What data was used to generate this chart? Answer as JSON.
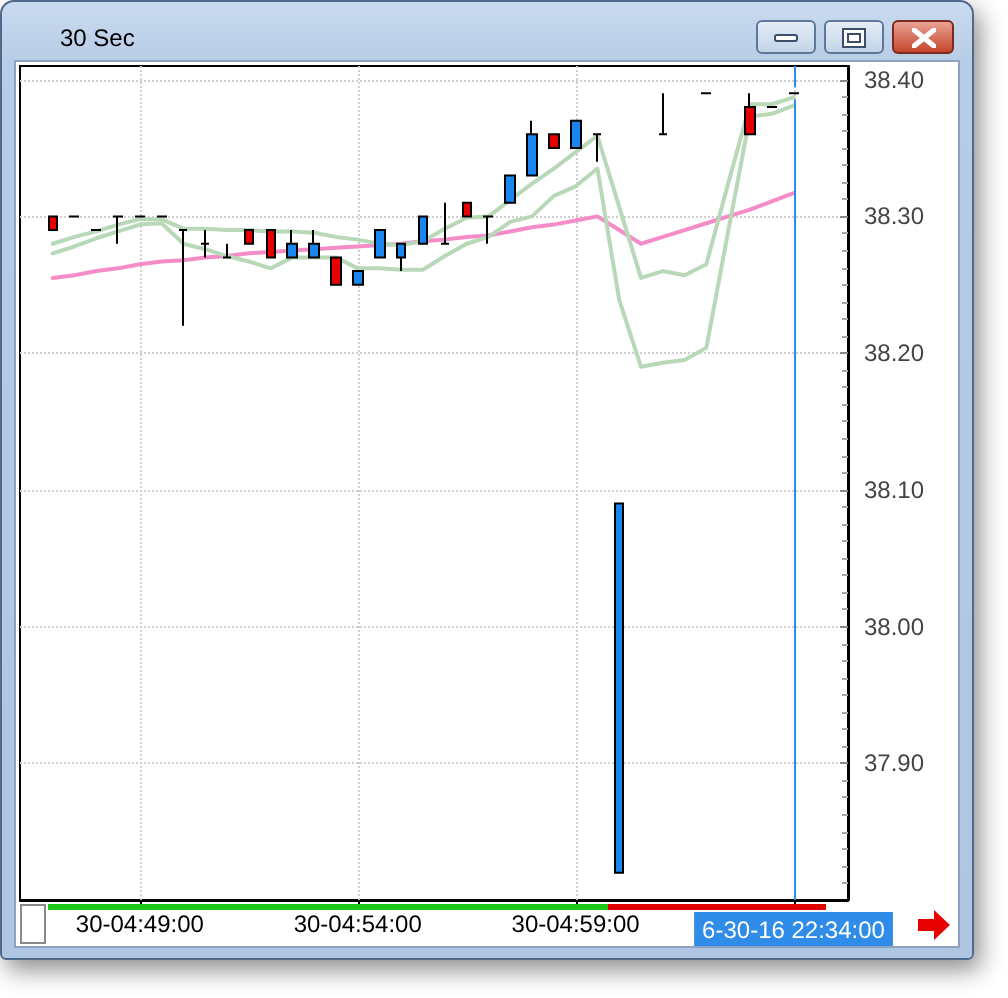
{
  "chart_data": {
    "type": "candlestick",
    "title": "30 Sec",
    "categories": [
      null,
      null,
      null,
      null,
      null,
      "30-04:49:00",
      null,
      null,
      null,
      null,
      null,
      null,
      null,
      null,
      null,
      "30-04:54:00",
      null,
      null,
      null,
      null,
      null,
      null,
      null,
      null,
      null,
      "30-04:59:00",
      null,
      null,
      null,
      null,
      null,
      null,
      null,
      null,
      null,
      "6-30-16 22:34:00",
      null,
      null
    ],
    "ohlc": [
      null,
      [
        38.3,
        38.3,
        38.29,
        38.29
      ],
      [
        38.3,
        38.3,
        38.3,
        38.3
      ],
      [
        38.29,
        38.29,
        38.29,
        38.29
      ],
      [
        38.3,
        38.3,
        38.28,
        38.3
      ],
      [
        38.3,
        38.3,
        38.3,
        38.3
      ],
      [
        38.3,
        38.3,
        38.3,
        38.3
      ],
      [
        38.29,
        38.29,
        38.22,
        38.29
      ],
      [
        38.28,
        38.29,
        38.27,
        38.28
      ],
      [
        38.27,
        38.28,
        38.27,
        38.27
      ],
      [
        38.29,
        38.29,
        38.28,
        38.28
      ],
      [
        38.29,
        38.29,
        38.27,
        38.27
      ],
      [
        38.27,
        38.29,
        38.27,
        38.28
      ],
      [
        38.27,
        38.29,
        38.27,
        38.28
      ],
      [
        38.27,
        38.27,
        38.25,
        38.25
      ],
      [
        38.25,
        38.26,
        38.25,
        38.26
      ],
      [
        38.27,
        38.29,
        38.27,
        38.29
      ],
      [
        38.27,
        38.28,
        38.26,
        38.28
      ],
      [
        38.28,
        38.3,
        38.28,
        38.3
      ],
      [
        38.28,
        38.31,
        38.28,
        38.28
      ],
      [
        38.31,
        38.31,
        38.3,
        38.3
      ],
      [
        38.3,
        38.3,
        38.28,
        38.3
      ],
      [
        38.31,
        38.33,
        38.31,
        38.33
      ],
      [
        38.33,
        38.37,
        38.33,
        38.36
      ],
      [
        38.36,
        38.36,
        38.35,
        38.35
      ],
      [
        38.35,
        38.37,
        38.35,
        38.37
      ],
      [
        38.36,
        38.36,
        38.34,
        38.36
      ],
      [
        37.82,
        38.09,
        37.82,
        38.09
      ],
      null,
      [
        38.36,
        38.39,
        38.36,
        38.36
      ],
      null,
      [
        38.39,
        38.39,
        38.39,
        38.39
      ],
      null,
      [
        38.38,
        38.39,
        38.36,
        38.36
      ],
      [
        38.38,
        38.38,
        38.38,
        38.38
      ],
      [
        38.39,
        38.39,
        38.39,
        38.39
      ],
      null,
      null
    ],
    "colors": [
      null,
      "#e80000",
      "#000000",
      "#000000",
      "#000000",
      "#000000",
      "#000000",
      "#000000",
      "#000000",
      "#000000",
      "#e80000",
      "#e80000",
      "#1a86f0",
      "#1a86f0",
      "#e80000",
      "#1a86f0",
      "#1a86f0",
      "#1a86f0",
      "#1a86f0",
      "#000000",
      "#e80000",
      "#000000",
      "#1a86f0",
      "#1a86f0",
      "#e80000",
      "#1a86f0",
      "#000000",
      "#1a86f0",
      null,
      "#000000",
      null,
      "#000000",
      null,
      "#e80000",
      "#000000",
      "#000000",
      null,
      null
    ],
    "series": [
      {
        "type": "line",
        "color": "#f48cc8",
        "values": [
          null,
          38.255,
          38.257,
          38.26,
          38.262,
          38.265,
          38.267,
          38.268,
          38.27,
          38.271,
          38.273,
          38.274,
          38.275,
          38.276,
          38.277,
          38.278,
          38.279,
          38.28,
          38.282,
          38.283,
          38.285,
          38.286,
          38.289,
          38.292,
          38.294,
          38.297,
          38.3,
          38.29,
          38.28,
          38.285,
          38.29,
          38.295,
          38.3,
          38.305,
          38.311,
          38.317,
          null,
          null
        ]
      },
      {
        "type": "line",
        "color": "#b8d8b8",
        "values": [
          null,
          38.28,
          38.285,
          38.289,
          38.294,
          38.298,
          38.298,
          38.291,
          38.291,
          38.29,
          38.29,
          38.289,
          38.289,
          38.288,
          38.285,
          38.283,
          38.28,
          38.279,
          38.282,
          38.291,
          38.299,
          38.3,
          38.312,
          38.324,
          38.335,
          38.347,
          38.359,
          38.307,
          38.255,
          38.26,
          38.257,
          38.265,
          38.324,
          38.382,
          38.382,
          38.387,
          null,
          null
        ]
      },
      {
        "type": "line",
        "color": "#b8d8b8",
        "values": [
          null,
          38.273,
          38.278,
          38.284,
          38.289,
          38.294,
          38.295,
          38.28,
          38.276,
          38.271,
          38.267,
          38.262,
          38.27,
          38.27,
          38.27,
          38.262,
          38.262,
          38.261,
          38.261,
          38.271,
          38.28,
          38.285,
          38.296,
          38.3,
          38.315,
          38.322,
          38.335,
          38.239,
          38.19,
          38.193,
          38.195,
          38.204,
          38.289,
          38.373,
          38.375,
          38.381,
          null,
          null
        ]
      }
    ],
    "ylim": [
      37.8,
      38.41
    ],
    "yticks": [
      {
        "value": 37.8125,
        "label": null
      },
      {
        "value": 37.825,
        "label": null
      },
      {
        "value": 37.8375,
        "label": null
      },
      {
        "value": 37.85,
        "label": null
      },
      {
        "value": 37.8625,
        "label": null
      },
      {
        "value": 37.875,
        "label": null
      },
      {
        "value": 37.8875,
        "label": null
      },
      {
        "value": 37.9,
        "label": "37.90"
      },
      {
        "value": 37.9125,
        "label": null
      },
      {
        "value": 37.925,
        "label": null
      },
      {
        "value": 37.9375,
        "label": null
      },
      {
        "value": 37.95,
        "label": null
      },
      {
        "value": 37.9625,
        "label": null
      },
      {
        "value": 37.975,
        "label": null
      },
      {
        "value": 37.9875,
        "label": null
      },
      {
        "value": 38.0,
        "label": "38.00"
      },
      {
        "value": 38.0125,
        "label": null
      },
      {
        "value": 38.025,
        "label": null
      },
      {
        "value": 38.0375,
        "label": null
      },
      {
        "value": 38.05,
        "label": null
      },
      {
        "value": 38.0625,
        "label": null
      },
      {
        "value": 38.075,
        "label": null
      },
      {
        "value": 38.0875,
        "label": null
      },
      {
        "value": 38.1,
        "label": "38.10"
      },
      {
        "value": 38.1125,
        "label": null
      },
      {
        "value": 38.125,
        "label": null
      },
      {
        "value": 38.1375,
        "label": null
      },
      {
        "value": 38.15,
        "label": null
      },
      {
        "value": 38.1625,
        "label": null
      },
      {
        "value": 38.175,
        "label": null
      },
      {
        "value": 38.1875,
        "label": null
      },
      {
        "value": 38.2,
        "label": "38.20"
      },
      {
        "value": 38.2125,
        "label": null
      },
      {
        "value": 38.225,
        "label": null
      },
      {
        "value": 38.2375,
        "label": null
      },
      {
        "value": 38.25,
        "label": null
      },
      {
        "value": 38.2625,
        "label": null
      },
      {
        "value": 38.275,
        "label": null
      },
      {
        "value": 38.2875,
        "label": null
      },
      {
        "value": 38.3,
        "label": "38.30"
      },
      {
        "value": 38.3125,
        "label": null
      },
      {
        "value": 38.325,
        "label": null
      },
      {
        "value": 38.3375,
        "label": null
      },
      {
        "value": 38.35,
        "label": null
      },
      {
        "value": 38.3625,
        "label": null
      },
      {
        "value": 38.375,
        "label": null
      },
      {
        "value": 38.3875,
        "label": null
      },
      {
        "value": 38.4,
        "label": "38.40"
      }
    ],
    "grid": true,
    "ref_lines": [
      {
        "axis": "x",
        "value": "6-30-16 22:34:00",
        "color": "#2f8ce8"
      }
    ]
  }
}
